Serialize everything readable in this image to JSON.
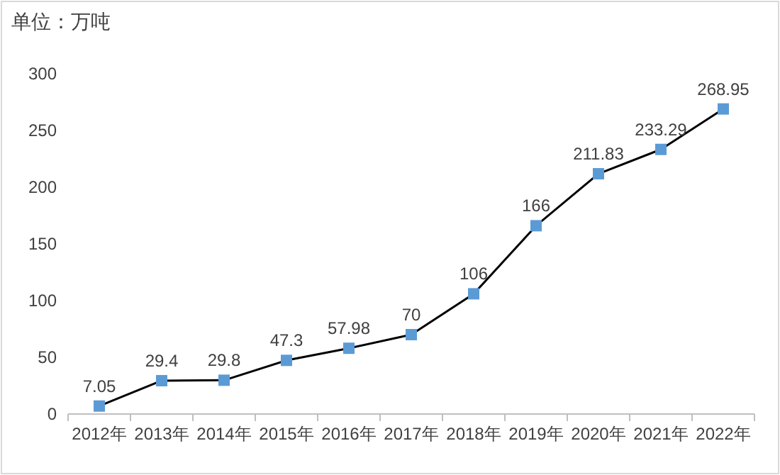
{
  "chart_data": {
    "type": "line",
    "ylabel": "单位：万吨",
    "categories": [
      "2012年",
      "2013年",
      "2014年",
      "2015年",
      "2016年",
      "2017年",
      "2018年",
      "2019年",
      "2020年",
      "2021年",
      "2022年"
    ],
    "series": [
      {
        "color": "#5b9bd5",
        "values": [
          7.05,
          29.4,
          29.8,
          47.3,
          57.98,
          70,
          106,
          166,
          211.83,
          233.29,
          268.95
        ]
      }
    ],
    "ylim": [
      0,
      300
    ],
    "yticks": [
      0,
      50,
      100,
      150,
      200,
      250,
      300
    ],
    "marker": "square",
    "data_labels": true
  }
}
